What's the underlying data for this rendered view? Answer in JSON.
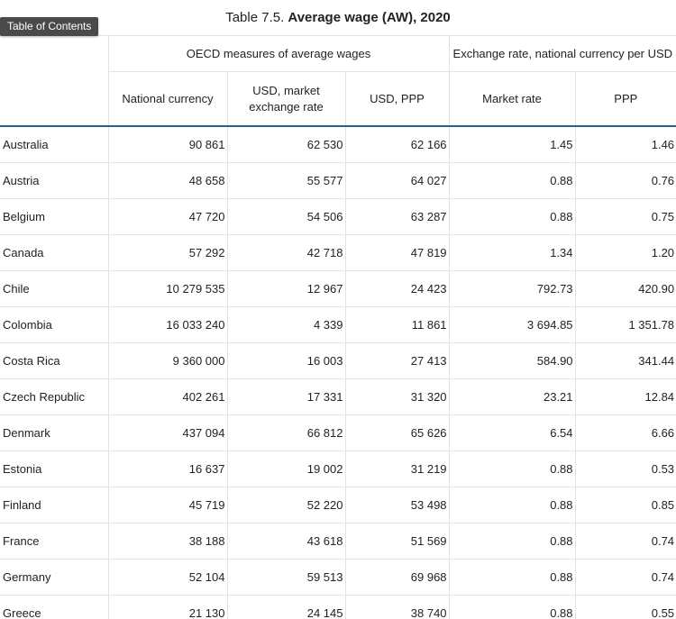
{
  "toc_label": "Table of Contents",
  "caption": {
    "prefix": "Table 7.5. ",
    "title": "Average wage (AW), 2020"
  },
  "header": {
    "group_oecd": "OECD measures of average wages",
    "group_exchange": "Exchange rate, national currency per USD",
    "col_national": "National currency",
    "col_usd_market": "USD, market exchange rate",
    "col_usd_ppp": "USD, PPP",
    "col_market_rate": "Market rate",
    "col_ppp": "PPP"
  },
  "rows": [
    {
      "country": "Australia",
      "national": "90 861",
      "usd_market": "62 530",
      "usd_ppp": "62 166",
      "market_rate": "1.45",
      "ppp": "1.46"
    },
    {
      "country": "Austria",
      "national": "48 658",
      "usd_market": "55 577",
      "usd_ppp": "64 027",
      "market_rate": "0.88",
      "ppp": "0.76"
    },
    {
      "country": "Belgium",
      "national": "47 720",
      "usd_market": "54 506",
      "usd_ppp": "63 287",
      "market_rate": "0.88",
      "ppp": "0.75"
    },
    {
      "country": "Canada",
      "national": "57 292",
      "usd_market": "42 718",
      "usd_ppp": "47 819",
      "market_rate": "1.34",
      "ppp": "1.20"
    },
    {
      "country": "Chile",
      "national": "10 279 535",
      "usd_market": "12 967",
      "usd_ppp": "24 423",
      "market_rate": "792.73",
      "ppp": "420.90"
    },
    {
      "country": "Colombia",
      "national": "16 033 240",
      "usd_market": "4 339",
      "usd_ppp": "11 861",
      "market_rate": "3 694.85",
      "ppp": "1 351.78"
    },
    {
      "country": "Costa Rica",
      "national": "9 360 000",
      "usd_market": "16 003",
      "usd_ppp": "27 413",
      "market_rate": "584.90",
      "ppp": "341.44"
    },
    {
      "country": "Czech Republic",
      "national": "402 261",
      "usd_market": "17 331",
      "usd_ppp": "31 320",
      "market_rate": "23.21",
      "ppp": "12.84"
    },
    {
      "country": "Denmark",
      "national": "437 094",
      "usd_market": "66 812",
      "usd_ppp": "65 626",
      "market_rate": "6.54",
      "ppp": "6.66"
    },
    {
      "country": "Estonia",
      "national": "16 637",
      "usd_market": "19 002",
      "usd_ppp": "31 219",
      "market_rate": "0.88",
      "ppp": "0.53"
    },
    {
      "country": "Finland",
      "national": "45 719",
      "usd_market": "52 220",
      "usd_ppp": "53 498",
      "market_rate": "0.88",
      "ppp": "0.85"
    },
    {
      "country": "France",
      "national": "38 188",
      "usd_market": "43 618",
      "usd_ppp": "51 569",
      "market_rate": "0.88",
      "ppp": "0.74"
    },
    {
      "country": "Germany",
      "national": "52 104",
      "usd_market": "59 513",
      "usd_ppp": "69 968",
      "market_rate": "0.88",
      "ppp": "0.74"
    },
    {
      "country": "Greece",
      "national": "21 130",
      "usd_market": "24 145",
      "usd_ppp": "38 740",
      "market_rate": "0.88",
      "ppp": "0.55"
    }
  ]
}
